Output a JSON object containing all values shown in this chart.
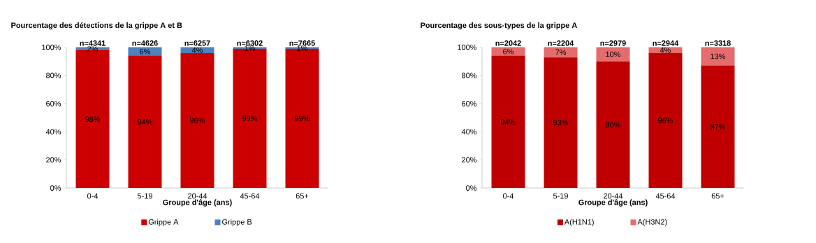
{
  "chart_data": [
    {
      "type": "bar",
      "title": "Pourcentage  des détections  de la grippe  A et B",
      "xlabel": "Groupe d'âge  (ans)",
      "categories": [
        "0-4",
        "5-19",
        "20-44",
        "45-64",
        "65+"
      ],
      "stacked": true,
      "legend": "bottom",
      "ylim": [
        0,
        100
      ],
      "yticks": [
        {
          "value": 0,
          "label": "0%"
        },
        {
          "value": 20,
          "label": "20%"
        },
        {
          "value": 40,
          "label": "40%"
        },
        {
          "value": 60,
          "label": "60%"
        },
        {
          "value": 80,
          "label": "80%"
        },
        {
          "value": 100,
          "label": "100%"
        }
      ],
      "series": [
        {
          "name": "Grippe A",
          "color": "#cc0000",
          "values": [
            98,
            94,
            96,
            99,
            99
          ],
          "value_labels": [
            "98%",
            "94%",
            "96%",
            "99%",
            "99%"
          ]
        },
        {
          "name": "Grippe B",
          "color": "#4f81bd",
          "values": [
            2,
            6,
            4,
            1,
            1
          ],
          "value_labels": [
            "2%",
            "6%",
            "4%",
            "1%",
            "1%"
          ]
        }
      ],
      "annotations": [
        "n=4341",
        "n=4626",
        "n=6257",
        "n=6302",
        "n=7665"
      ]
    },
    {
      "type": "bar",
      "title": "Pourcentage  des sous-types  de la grippe  A",
      "xlabel": "Groupe d'âge  (ans)",
      "categories": [
        "0-4",
        "5-19",
        "20-44",
        "45-64",
        "65+"
      ],
      "stacked": true,
      "legend": "bottom",
      "ylim": [
        0,
        100
      ],
      "yticks": [
        {
          "value": 0,
          "label": "0%"
        },
        {
          "value": 20,
          "label": "20%"
        },
        {
          "value": 40,
          "label": "40%"
        },
        {
          "value": 60,
          "label": "60%"
        },
        {
          "value": 80,
          "label": "80%"
        },
        {
          "value": 100,
          "label": "100%"
        }
      ],
      "series": [
        {
          "name": "A(H1N1)",
          "color": "#c00000",
          "values": [
            94,
            93,
            90,
            96,
            87
          ],
          "value_labels": [
            "94%",
            "93%",
            "90%",
            "96%",
            "87%"
          ]
        },
        {
          "name": "A(H3N2)",
          "color": "#e46c6c",
          "values": [
            6,
            7,
            10,
            4,
            13
          ],
          "value_labels": [
            "6%",
            "7%",
            "10%",
            "4%",
            "13%"
          ]
        }
      ],
      "annotations": [
        "n=2042",
        "n=2204",
        "n=2979",
        "n=2944",
        "n=3318"
      ]
    }
  ]
}
